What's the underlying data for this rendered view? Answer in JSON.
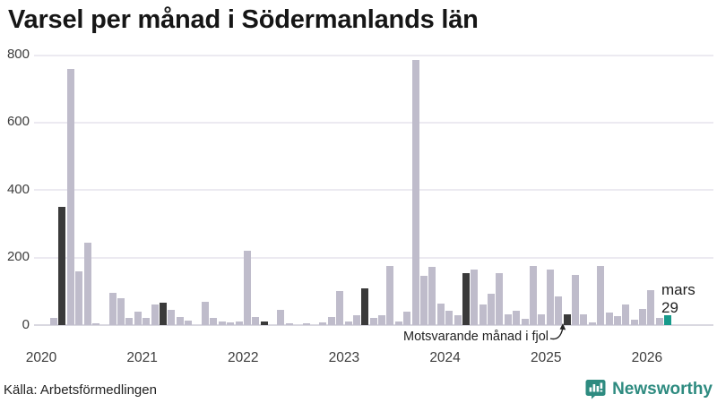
{
  "title": "Varsel per månad i Södermanlands län",
  "source": "Källa: Arbetsförmedlingen",
  "logo": {
    "text": "Newsworthy"
  },
  "annotation": {
    "text": "Motsvarande månad i fjol"
  },
  "current_label": {
    "month": "mars",
    "value": "29"
  },
  "colors": {
    "bar_normal": "#bfbccb",
    "bar_same_month_previous_years": "#3a3a3a",
    "bar_current": "#179a8b",
    "logo_teal": "#2e8b80",
    "gridline": "#eceaf1",
    "text": "#222222"
  },
  "chart_data": {
    "type": "bar",
    "title": "Varsel per månad i Södermanlands län",
    "xlabel": "",
    "ylabel": "",
    "unit": "varsel (antal personer)",
    "ylim": [
      0,
      800
    ],
    "y_ticks": [
      0,
      200,
      400,
      600,
      800
    ],
    "year_ticks": [
      "2020",
      "2021",
      "2022",
      "2023",
      "2024",
      "2025",
      "2026"
    ],
    "grid": true,
    "legend": false,
    "start_month": "2020-01",
    "values": [
      0,
      20,
      350,
      760,
      160,
      245,
      5,
      0,
      95,
      80,
      20,
      40,
      22,
      60,
      67,
      44,
      24,
      14,
      0,
      70,
      22,
      11,
      9,
      10,
      220,
      23,
      10,
      0,
      45,
      6,
      0,
      6,
      0,
      8,
      23,
      100,
      10,
      28,
      110,
      20,
      30,
      174,
      10,
      40,
      785,
      145,
      173,
      65,
      43,
      30,
      155,
      165,
      60,
      94,
      153,
      31,
      42,
      19,
      174,
      31,
      165,
      85,
      33,
      148,
      33,
      8,
      175,
      37,
      26,
      62,
      17,
      49,
      103,
      22,
      29
    ],
    "fjol_indices": [
      2,
      14,
      26,
      38,
      50,
      62
    ],
    "fjol_months": [
      "2020-03",
      "2021-03",
      "2022-03",
      "2023-03",
      "2024-03",
      "2025-03"
    ],
    "current_index": 74,
    "current_month": "2026-03",
    "current_value": 29
  }
}
